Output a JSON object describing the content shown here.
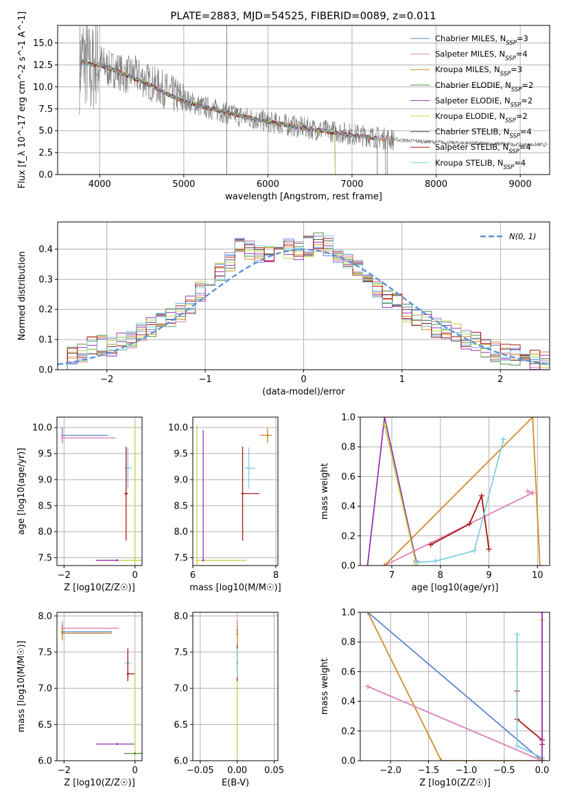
{
  "title": "PLATE=2883, MJD=54525, FIBERID=0089, z=0.011",
  "colors": {
    "Chabrier MILES": "#5b84d0",
    "Salpeter MILES": "#e07fb8",
    "Kroupa MILES": "#d28a2a",
    "Chabrier ELODIE": "#4f8d3f",
    "Salpeter ELODIE": "#9b2fb5",
    "Kroupa ELODIE": "#c7d641",
    "Chabrier STELIB": "#555555",
    "Salpeter STELIB": "#a81414",
    "Kroupa STELIB": "#7fcfdc",
    "data": "#808080",
    "normal": "#5f8fd6"
  },
  "chart_data": [
    {
      "type": "line",
      "panel": "spectrum",
      "title": "PLATE=2883, MJD=54525, FIBERID=0089, z=0.011",
      "xlabel": "wavelength [Angstrom, rest frame]",
      "ylabel": "Flux [f_λ 10^-17 erg cm^-2 s^-1 A^-1]",
      "xlim": [
        3500,
        9350
      ],
      "ylim": [
        0,
        17
      ],
      "xticks": [
        4000,
        5000,
        6000,
        7000,
        8000,
        9000
      ],
      "yticks": [
        0.0,
        2.5,
        5.0,
        7.5,
        10.0,
        12.5,
        15.0
      ],
      "ytick_labels": [
        "0.0",
        "2.5",
        "5.0",
        "7.5",
        "10.0",
        "12.5",
        "15.0"
      ],
      "legend_position": "top-right",
      "legend": [
        {
          "name": "Chabrier MILES",
          "nssp": "3"
        },
        {
          "name": "Salpeter MILES",
          "nssp": "4"
        },
        {
          "name": "Kroupa MILES",
          "nssp": "3"
        },
        {
          "name": "Chabrier ELODIE",
          "nssp": "2"
        },
        {
          "name": "Salpeter ELODIE",
          "nssp": "2"
        },
        {
          "name": "Kroupa ELODIE",
          "nssp": "2"
        },
        {
          "name": "Chabrier STELIB",
          "nssp": "4"
        },
        {
          "name": "Salpeter STELIB",
          "nssp": "4"
        },
        {
          "name": "Kroupa STELIB",
          "nssp": "4"
        }
      ],
      "data_curve": {
        "x": [
          3750,
          3800,
          3850,
          3900,
          3950,
          4000,
          4100,
          4200,
          4300,
          4400,
          4500,
          4600,
          4700,
          4800,
          4900,
          5000,
          5200,
          5400,
          5600,
          5800,
          6000,
          6200,
          6400,
          6600,
          6800,
          7000,
          7200,
          7400,
          7600,
          7800,
          8000,
          8200,
          8400,
          8600,
          8800,
          9000,
          9200
        ],
        "y": [
          12.0,
          13.5,
          12.5,
          11.5,
          13.0,
          13.0,
          12.0,
          12.0,
          11.3,
          11.5,
          11.0,
          10.5,
          10.0,
          9.5,
          9.0,
          8.6,
          7.8,
          7.3,
          6.8,
          6.4,
          6.0,
          5.7,
          5.4,
          5.1,
          4.9,
          4.6,
          4.4,
          4.1,
          3.9,
          3.8,
          3.7,
          3.6,
          3.6,
          3.5,
          3.5,
          3.4,
          3.4
        ]
      },
      "model_curve": {
        "x": [
          3750,
          3800,
          3900,
          4000,
          4200,
          4400,
          4600,
          4800,
          5000,
          5500,
          6000,
          6500,
          7000,
          7400
        ],
        "y": [
          11.5,
          13.0,
          12.5,
          12.5,
          11.8,
          11.0,
          10.2,
          9.2,
          8.3,
          7.1,
          6.0,
          5.2,
          4.5,
          4.0
        ]
      },
      "model_ends": {
        "Chabrier MILES": 7400,
        "Salpeter MILES": 7420,
        "Kroupa MILES": 7420,
        "Chabrier ELODIE": 6800,
        "Salpeter ELODIE": 6800,
        "Kroupa ELODIE": 6800,
        "Chabrier STELIB": 7300,
        "Salpeter STELIB": 7300,
        "Kroupa STELIB": 7300
      },
      "vertical_line_x": 5510
    },
    {
      "type": "line",
      "panel": "residuals",
      "xlabel": "(data-model)/error",
      "ylabel": "Normed distribution",
      "xlim": [
        -2.5,
        2.5
      ],
      "ylim": [
        0,
        0.49
      ],
      "xticks": [
        -2,
        -1,
        0,
        1,
        2
      ],
      "yticks": [
        0.0,
        0.1,
        0.2,
        0.3,
        0.4
      ],
      "ytick_labels": [
        "0.0",
        "0.1",
        "0.2",
        "0.3",
        "0.4"
      ],
      "legend_position": "top-right",
      "legend_label": "N(0, 1)",
      "bin_edges": [
        -2.5,
        -2.4,
        -2.3,
        -2.2,
        -2.1,
        -2.0,
        -1.9,
        -1.8,
        -1.7,
        -1.6,
        -1.5,
        -1.4,
        -1.3,
        -1.2,
        -1.1,
        -1.0,
        -0.9,
        -0.8,
        -0.7,
        -0.6,
        -0.5,
        -0.4,
        -0.3,
        -0.2,
        -0.1,
        0.0,
        0.1,
        0.2,
        0.3,
        0.4,
        0.5,
        0.6,
        0.7,
        0.8,
        0.9,
        1.0,
        1.1,
        1.2,
        1.3,
        1.4,
        1.5,
        1.6,
        1.7,
        1.8,
        1.9,
        2.0,
        2.1,
        2.2,
        2.3,
        2.4,
        2.5
      ],
      "hist_base": [
        0.03,
        0.04,
        0.06,
        0.08,
        0.08,
        0.08,
        0.09,
        0.1,
        0.12,
        0.14,
        0.16,
        0.17,
        0.19,
        0.22,
        0.26,
        0.28,
        0.33,
        0.36,
        0.41,
        0.4,
        0.38,
        0.39,
        0.4,
        0.4,
        0.4,
        0.41,
        0.42,
        0.41,
        0.39,
        0.36,
        0.33,
        0.28,
        0.26,
        0.24,
        0.22,
        0.19,
        0.17,
        0.16,
        0.14,
        0.13,
        0.12,
        0.1,
        0.09,
        0.07,
        0.06,
        0.05,
        0.05,
        0.04,
        0.03,
        0.03
      ]
    },
    {
      "type": "scatter",
      "panel": "age-vs-Z",
      "xlabel": "Z [log10(Z/Z☉)]",
      "ylabel": "age  [log10(age/yr)]",
      "xlim": [
        -2.2,
        0.2
      ],
      "ylim": [
        7.35,
        10.2
      ],
      "xticks": [
        -2,
        0
      ],
      "yticks": [
        7.5,
        8.0,
        8.5,
        9.0,
        9.5,
        10.0
      ],
      "points": [
        {
          "series": "Chabrier MILES",
          "x": -2.05,
          "y": 9.85,
          "xerr": [
            0,
            1.3
          ],
          "yerr": [
            0.15,
            0.15
          ]
        },
        {
          "series": "Salpeter MILES",
          "x": -2.05,
          "y": 9.8,
          "xerr": [
            0,
            1.5
          ],
          "yerr": [
            0.1,
            0.1
          ]
        },
        {
          "series": "Kroupa STELIB",
          "x": -0.2,
          "y": 9.22,
          "xerr": [
            0.1,
            0.1
          ],
          "yerr": [
            0.4,
            0.4
          ]
        },
        {
          "series": "Salpeter STELIB",
          "x": -0.25,
          "y": 8.73,
          "xerr": [
            0.05,
            0.05
          ],
          "yerr": [
            0.9,
            0.9
          ]
        },
        {
          "series": "Kroupa ELODIE",
          "x": 0.0,
          "y": 7.45,
          "xerr": [
            1.0,
            0.3
          ],
          "yerr": [
            0.1,
            2.6
          ]
        },
        {
          "series": "Salpeter ELODIE",
          "x": -0.5,
          "y": 7.45,
          "xerr": [
            0.6,
            0.0
          ],
          "yerr": [
            0.0,
            0.0
          ]
        }
      ]
    },
    {
      "type": "scatter",
      "panel": "age-vs-mass",
      "xlabel": "mass [log10(M/M☉)]",
      "ylabel": "",
      "xlim": [
        6.0,
        8.05
      ],
      "ylim": [
        7.35,
        10.2
      ],
      "xticks": [
        6,
        8
      ],
      "yticks": [
        7.5,
        8.0,
        8.5,
        9.0,
        9.5,
        10.0
      ],
      "points": [
        {
          "series": "Salpeter MILES",
          "x": 7.8,
          "y": 9.85,
          "xerr": [
            0.2,
            0.1
          ],
          "yerr": [
            0.1,
            0.1
          ]
        },
        {
          "series": "Kroupa MILES",
          "x": 7.8,
          "y": 9.85,
          "xerr": [
            0.15,
            0.1
          ],
          "yerr": [
            0.15,
            0.15
          ]
        },
        {
          "series": "Kroupa STELIB",
          "x": 7.35,
          "y": 9.22,
          "xerr": [
            0.1,
            0.15
          ],
          "yerr": [
            0.4,
            0.4
          ]
        },
        {
          "series": "Salpeter STELIB",
          "x": 7.2,
          "y": 8.73,
          "xerr": [
            0.0,
            0.4
          ],
          "yerr": [
            0.9,
            0.9
          ]
        },
        {
          "series": "Kroupa ELODIE",
          "x": 6.1,
          "y": 7.45,
          "xerr": [
            0,
            1.2
          ],
          "yerr": [
            0.1,
            2.6
          ]
        },
        {
          "series": "Salpeter ELODIE",
          "x": 6.25,
          "y": 7.45,
          "xerr": [
            0,
            0
          ],
          "yerr": [
            0,
            2.5
          ]
        }
      ]
    },
    {
      "type": "line",
      "panel": "mass-weight-vs-age",
      "xlabel": "age  [log10(age/yr)]",
      "ylabel": "mass weight",
      "xlim": [
        6.35,
        10.25
      ],
      "ylim": [
        0,
        1
      ],
      "xticks": [
        7,
        8,
        9,
        10
      ],
      "yticks": [
        0.0,
        0.2,
        0.4,
        0.6,
        0.8,
        1.0
      ],
      "ytick_labels": [
        "0.0",
        "0.2",
        "0.4",
        "0.6",
        "0.8",
        "1.0"
      ],
      "series": [
        {
          "name": "Salpeter MILES",
          "x": [
            6.85,
            9.9,
            9.8
          ],
          "y": [
            0.0,
            0.49,
            0.5
          ]
        },
        {
          "name": "Kroupa MILES",
          "x": [
            6.85,
            9.9,
            10.05
          ],
          "y": [
            0.0,
            1.0,
            0.0
          ]
        },
        {
          "name": "Salpeter ELODIE",
          "x": [
            6.5,
            6.85,
            7.5
          ],
          "y": [
            0.0,
            1.0,
            0.03
          ]
        },
        {
          "name": "Kroupa ELODIE",
          "x": [
            6.85,
            7.5
          ],
          "y": [
            0.95,
            0.01
          ]
        },
        {
          "name": "Salpeter STELIB",
          "x": [
            7.8,
            8.6,
            8.85,
            9.0
          ],
          "y": [
            0.14,
            0.28,
            0.47,
            0.11
          ]
        },
        {
          "name": "Kroupa STELIB",
          "x": [
            7.5,
            7.9,
            8.7,
            9.3,
            9.3
          ],
          "y": [
            0.02,
            0.03,
            0.1,
            0.85,
            0.85
          ]
        }
      ]
    },
    {
      "type": "scatter",
      "panel": "mass-vs-Z",
      "xlabel": "Z [log10(Z/Z☉)]",
      "ylabel": "mass [log10(M/M☉)]",
      "xlim": [
        -2.2,
        0.2
      ],
      "ylim": [
        6.0,
        8.05
      ],
      "xticks": [
        -2,
        0
      ],
      "yticks": [
        6.0,
        6.5,
        7.0,
        7.5,
        8.0
      ],
      "points": [
        {
          "series": "Salpeter MILES",
          "x": -2.05,
          "y": 7.83,
          "xerr": [
            0,
            1.6
          ],
          "yerr": [
            0.1,
            0.1
          ]
        },
        {
          "series": "Chabrier MILES",
          "x": -2.05,
          "y": 7.78,
          "xerr": [
            0,
            1.4
          ],
          "yerr": [
            0.1,
            0.1
          ]
        },
        {
          "series": "Kroupa MILES",
          "x": -2.05,
          "y": 7.76,
          "xerr": [
            0,
            1.4
          ],
          "yerr": [
            0.1,
            0.1
          ]
        },
        {
          "series": "Kroupa STELIB",
          "x": -0.2,
          "y": 7.35,
          "xerr": [
            0.1,
            0.1
          ],
          "yerr": [
            0.2,
            0.15
          ]
        },
        {
          "series": "Salpeter STELIB",
          "x": -0.2,
          "y": 7.2,
          "xerr": [
            0,
            0.2
          ],
          "yerr": [
            0.1,
            0.35
          ]
        },
        {
          "series": "Salpeter ELODIE",
          "x": -0.5,
          "y": 6.23,
          "xerr": [
            0.6,
            0.5
          ],
          "yerr": [
            0,
            0
          ]
        },
        {
          "series": "Kroupa ELODIE",
          "x": 0.0,
          "y": 6.1,
          "xerr": [
            0.3,
            0.3
          ],
          "yerr": [
            0,
            1.15
          ]
        },
        {
          "series": "Chabrier ELODIE",
          "x": 0.0,
          "y": 6.1,
          "xerr": [
            0.3,
            0.2
          ],
          "yerr": [
            0,
            0
          ]
        }
      ]
    },
    {
      "type": "scatter",
      "panel": "mass-vs-EBV",
      "xlabel": "E(B-V)",
      "ylabel": "",
      "xlim": [
        -0.06,
        0.055
      ],
      "ylim": [
        6.0,
        8.05
      ],
      "xticks": [
        -0.05,
        0.0,
        0.05
      ],
      "xtick_labels": [
        "−0.05",
        "0.00",
        "0.05"
      ],
      "yticks": [
        6.0,
        6.5,
        7.0,
        7.5,
        8.0
      ],
      "points": [
        {
          "series": "Kroupa ELODIE",
          "x": 0.0,
          "y": 7.0,
          "xerr": [
            0,
            0
          ],
          "yerr": [
            0.9,
            0.9
          ]
        },
        {
          "series": "Salpeter MILES",
          "x": 0.0,
          "y": 7.8,
          "xerr": [
            0,
            0
          ],
          "yerr": [
            0.15,
            0.15
          ]
        },
        {
          "series": "Kroupa MILES",
          "x": 0.0,
          "y": 7.75,
          "xerr": [
            0,
            0
          ],
          "yerr": [
            0.2,
            0.15
          ]
        },
        {
          "series": "Salpeter STELIB",
          "x": 0.0,
          "y": 7.35,
          "xerr": [
            0,
            0
          ],
          "yerr": [
            0.25,
            0.25
          ]
        },
        {
          "series": "Kroupa STELIB",
          "x": 0.0,
          "y": 7.35,
          "xerr": [
            0,
            0
          ],
          "yerr": [
            0.2,
            0.2
          ]
        }
      ]
    },
    {
      "type": "line",
      "panel": "mass-weight-vs-Z",
      "xlabel": "Z [log10(Z/Z☉)]",
      "ylabel": "mass weight",
      "xlim": [
        -2.4,
        0.1
      ],
      "ylim": [
        0,
        1
      ],
      "xticks": [
        -2.0,
        -1.5,
        -1.0,
        -0.5,
        0.0
      ],
      "xtick_labels": [
        "−2.0",
        "−1.5",
        "−1.0",
        "−0.5",
        "0.0"
      ],
      "yticks": [
        0.0,
        0.2,
        0.4,
        0.6,
        0.8,
        1.0
      ],
      "ytick_labels": [
        "0.0",
        "0.2",
        "0.4",
        "0.6",
        "0.8",
        "1.0"
      ],
      "series": [
        {
          "name": "Chabrier MILES",
          "x": [
            -2.3,
            0.0
          ],
          "y": [
            1.0,
            0.0
          ]
        },
        {
          "name": "Kroupa MILES",
          "x": [
            -2.3,
            -1.33,
            0.0
          ],
          "y": [
            1.0,
            0.0,
            0.0
          ]
        },
        {
          "name": "Salpeter MILES",
          "x": [
            -2.3,
            0.0
          ],
          "y": [
            0.5,
            0.0
          ]
        },
        {
          "name": "Salpeter STELIB",
          "x": [
            -0.33,
            -0.33,
            0.0,
            0.0
          ],
          "y": [
            0.47,
            0.28,
            0.14,
            0.11
          ]
        },
        {
          "name": "Kroupa STELIB",
          "x": [
            -0.33,
            -0.33,
            0.0
          ],
          "y": [
            0.85,
            0.1,
            0.02
          ]
        },
        {
          "name": "Kroupa ELODIE",
          "x": [
            0.0,
            0.0
          ],
          "y": [
            0.95,
            0.01
          ]
        },
        {
          "name": "Salpeter ELODIE",
          "x": [
            0.0,
            0.0
          ],
          "y": [
            1.0,
            0.0
          ]
        }
      ]
    }
  ]
}
